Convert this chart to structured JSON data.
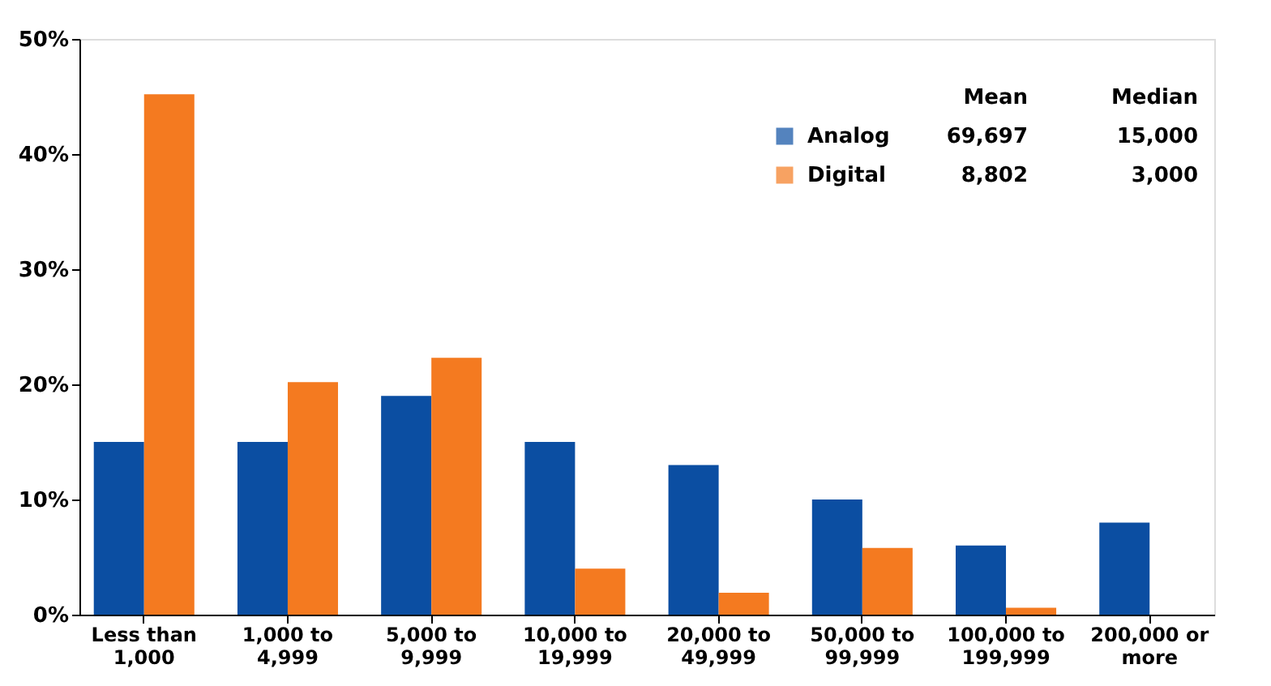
{
  "chart_data": {
    "type": "bar",
    "categories": [
      "Less than 1,000",
      "1,000 to 4,999",
      "5,000 to 9,999",
      "10,000 to 19,999",
      "20,000 to 49,999",
      "50,000 to 99,999",
      "100,000 to 199,999",
      "200,000 or more"
    ],
    "series": [
      {
        "name": "Analog",
        "color": "#0b4ea2",
        "values": [
          15,
          15,
          19,
          15,
          13,
          10,
          6,
          8
        ]
      },
      {
        "name": "Digital",
        "color": "#f47a20",
        "values": [
          45.2,
          20.2,
          22.3,
          4,
          1.9,
          5.8,
          0.6,
          0
        ]
      }
    ],
    "ylim": [
      0,
      50
    ],
    "yticks": [
      {
        "value": 0,
        "label": "0%"
      },
      {
        "value": 10,
        "label": "10%"
      },
      {
        "value": 20,
        "label": "20%"
      },
      {
        "value": 30,
        "label": "30%"
      },
      {
        "value": 40,
        "label": "40%"
      },
      {
        "value": 50,
        "label": "50%"
      }
    ],
    "annotations": [
      "Mean",
      "Median",
      "69,697",
      "15,000",
      "8,802",
      "3,000"
    ],
    "legend": "top right",
    "grid": false
  }
}
